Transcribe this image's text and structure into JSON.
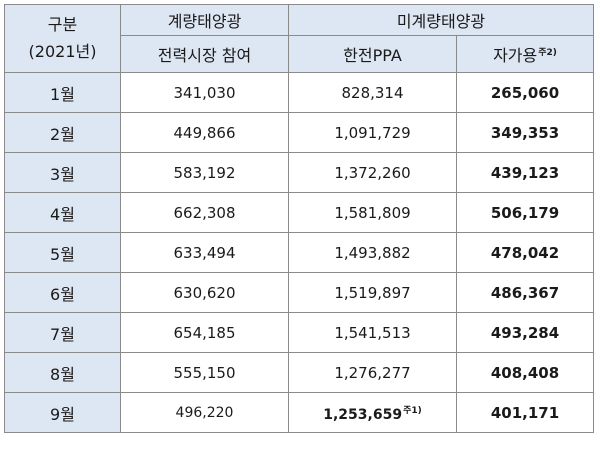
{
  "header": {
    "corner_line1": "구분",
    "corner_line2": "(2021년)",
    "group_metered": "계량태양광",
    "group_unmetered": "미계량태양광",
    "col_market": "전력시장 참여",
    "col_ppa": "한전PPA",
    "col_self": "자가용",
    "col_self_note": "주2)"
  },
  "rows": [
    {
      "month": "1월",
      "market": "341,030",
      "ppa": "828,314",
      "self": "265,060",
      "ppa_note": ""
    },
    {
      "month": "2월",
      "market": "449,866",
      "ppa": "1,091,729",
      "self": "349,353",
      "ppa_note": ""
    },
    {
      "month": "3월",
      "market": "583,192",
      "ppa": "1,372,260",
      "self": "439,123",
      "ppa_note": ""
    },
    {
      "month": "4월",
      "market": "662,308",
      "ppa": "1,581,809",
      "self": "506,179",
      "ppa_note": ""
    },
    {
      "month": "5월",
      "market": "633,494",
      "ppa": "1,493,882",
      "self": "478,042",
      "ppa_note": ""
    },
    {
      "month": "6월",
      "market": "630,620",
      "ppa": "1,519,897",
      "self": "486,367",
      "ppa_note": ""
    },
    {
      "month": "7월",
      "market": "654,185",
      "ppa": "1,541,513",
      "self": "493,284",
      "ppa_note": ""
    },
    {
      "month": "8월",
      "market": "555,150",
      "ppa": "1,276,277",
      "self": "408,408",
      "ppa_note": ""
    },
    {
      "month": "9월",
      "market": "496,220",
      "ppa": "1,253,659",
      "self": "401,171",
      "ppa_note": "주1)"
    }
  ]
}
